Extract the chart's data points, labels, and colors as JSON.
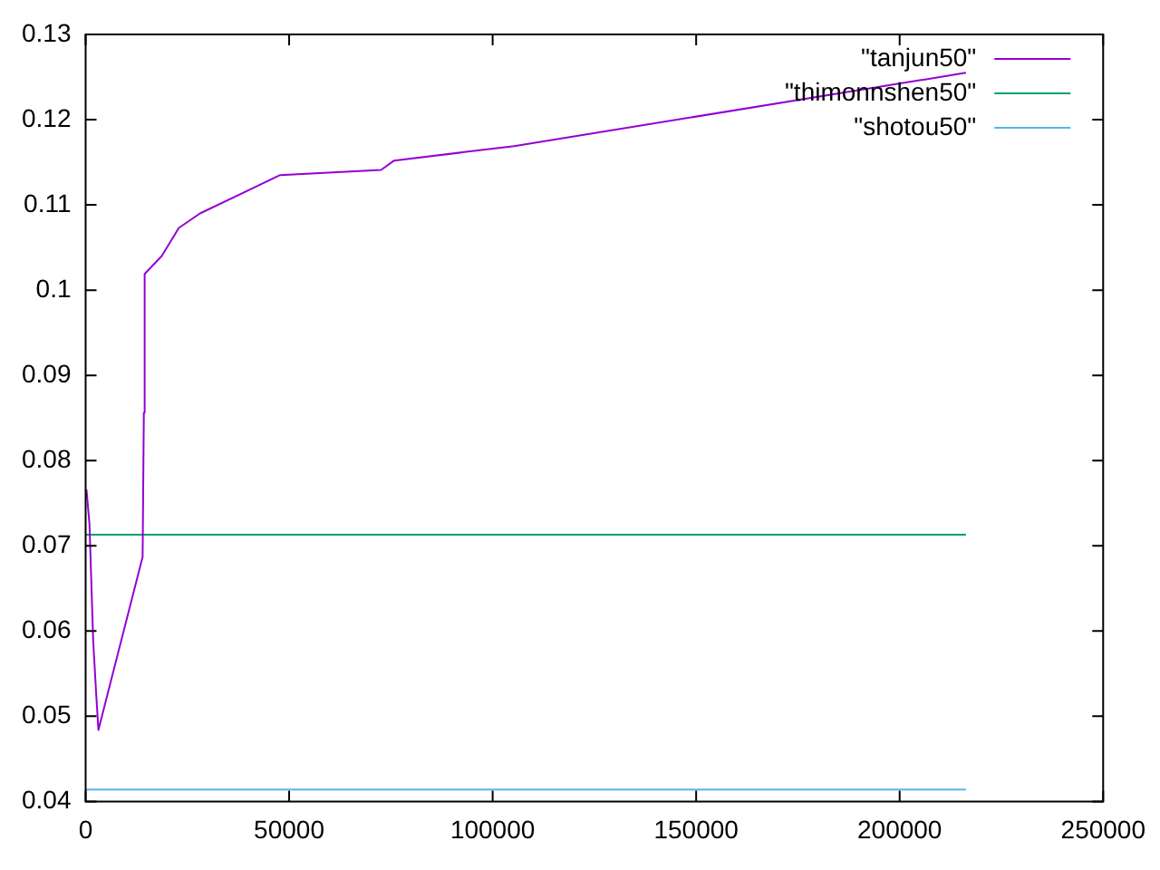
{
  "chart_data": {
    "type": "line",
    "xlim": [
      0,
      250000
    ],
    "xticks": [
      0,
      50000,
      100000,
      150000,
      200000,
      250000
    ],
    "ylim": [
      0.04,
      0.13
    ],
    "yticks": [
      0.04,
      0.05,
      0.06,
      0.07,
      0.08,
      0.09,
      0.1,
      0.11,
      0.12,
      0.13
    ],
    "grid": false,
    "legend": "top right",
    "marker": "none",
    "line_style": "solid",
    "series": [
      {
        "name": "\"tanjun50\"",
        "color": "#9400d3",
        "x": [
          200,
          940,
          1400,
          1870,
          2670,
          3140,
          14000,
          14300,
          14500,
          18700,
          22900,
          28100,
          47800,
          72600,
          75800,
          105300,
          216300
        ],
        "values": [
          0.0766,
          0.0726,
          0.0657,
          0.0587,
          0.052,
          0.0484,
          0.0687,
          0.0856,
          0.1019,
          0.104,
          0.1073,
          0.109,
          0.1135,
          0.1141,
          0.1152,
          0.1169,
          0.1255
        ]
      },
      {
        "name": "\"thimonnshen50\"",
        "color": "#009e73",
        "x": [
          0,
          216300
        ],
        "values": [
          0.0713,
          0.0713
        ]
      },
      {
        "name": "\"shotou50\"",
        "color": "#56b4e9",
        "x": [
          0,
          216300
        ],
        "values": [
          0.0414,
          0.0414
        ]
      }
    ]
  }
}
